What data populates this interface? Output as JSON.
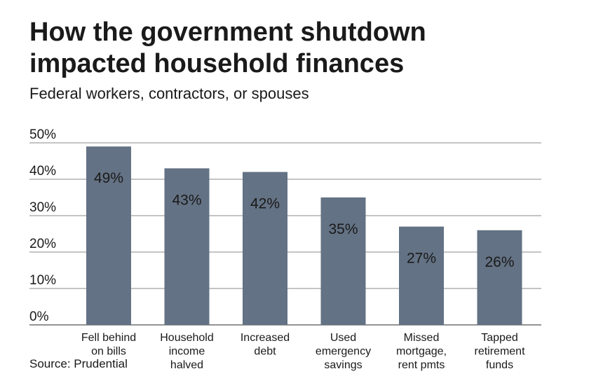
{
  "title_lines": [
    "How the government shutdown",
    "impacted household finances"
  ],
  "subtitle": "Federal workers, contractors, or spouses",
  "source": "Source: Prudential",
  "colors": {
    "bar": "#637284",
    "grid": "#8a8a8a",
    "text": "#1a1a1a"
  },
  "chart_data": {
    "type": "bar",
    "title": "How the government shutdown impacted household finances",
    "subtitle": "Federal workers, contractors, or spouses",
    "categories": [
      [
        "Fell behind",
        "on bills"
      ],
      [
        "Household",
        "income",
        "halved"
      ],
      [
        "Increased",
        "debt"
      ],
      [
        "Used",
        "emergency",
        "savings"
      ],
      [
        "Missed",
        "mortgage,",
        "rent pmts"
      ],
      [
        "Tapped",
        "retirement",
        "funds"
      ]
    ],
    "values": [
      49,
      43,
      42,
      35,
      27,
      26
    ],
    "data_labels": [
      "49%",
      "43%",
      "42%",
      "35%",
      "27%",
      "26%"
    ],
    "ylim": [
      0,
      50
    ],
    "yticks": [
      0,
      10,
      20,
      30,
      40,
      50
    ],
    "ytick_labels": [
      "0%",
      "10%",
      "20%",
      "30%",
      "40%",
      "50%"
    ],
    "grid": true,
    "xlabel": "",
    "ylabel": ""
  }
}
